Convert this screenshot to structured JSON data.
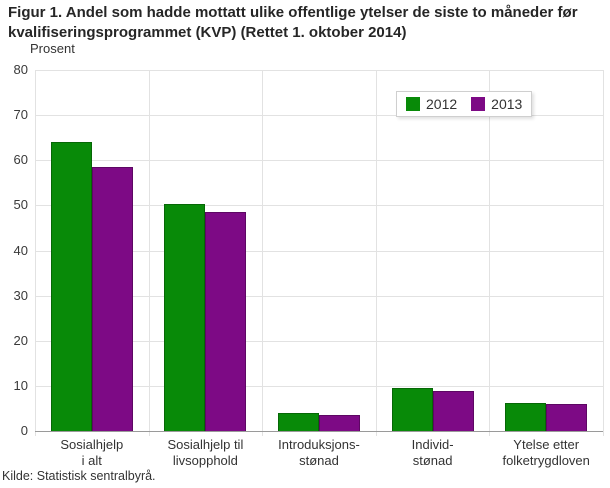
{
  "title": "Figur 1. Andel som hadde mottatt ulike offentlige ytelser de siste to måneder før kvalifiseringsprogrammet (KVP) (Rettet 1. oktober 2014)",
  "source": "Kilde: Statistisk sentralbyrå.",
  "chart_data": {
    "type": "bar",
    "title": "Figur 1. Andel som hadde mottatt ulike offentlige ytelser de siste to måneder før kvalifiseringsprogrammet (KVP) (Rettet 1. oktober 2014)",
    "ylabel": "Prosent",
    "xlabel": "",
    "ylim": [
      0,
      80
    ],
    "ytick_step": 10,
    "grid": true,
    "legend_position": "top-right",
    "categories": [
      "Sosialhjelp\ni alt",
      "Sosialhjelp til\nlivsopphold",
      "Introduksjons-\nstønad",
      "Individ-\nstønad",
      "Ytelse etter\nfolketrygdloven"
    ],
    "series": [
      {
        "name": "2012",
        "color": "#088A08",
        "values": [
          64,
          50.3,
          4,
          9.5,
          6.2
        ]
      },
      {
        "name": "2013",
        "color": "#7D0A85",
        "values": [
          58.4,
          48.5,
          3.5,
          8.8,
          6
        ]
      }
    ]
  }
}
